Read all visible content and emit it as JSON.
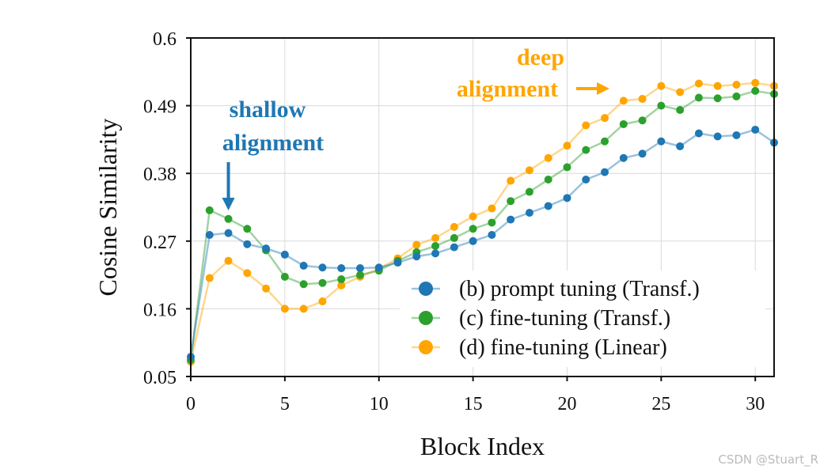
{
  "chart_data": {
    "type": "line",
    "xlabel": "Block Index",
    "ylabel": "Cosine Similarity",
    "xlim": [
      0,
      31
    ],
    "ylim": [
      0.05,
      0.6
    ],
    "xticks": [
      0,
      5,
      10,
      15,
      20,
      25,
      30
    ],
    "xtick_labels": [
      "0",
      "5",
      "10",
      "15",
      "20",
      "25",
      "30"
    ],
    "yticks": [
      0.05,
      0.16,
      0.27,
      0.38,
      0.49,
      0.6
    ],
    "ytick_labels": [
      "0.05",
      "0.16",
      "0.27",
      "0.38",
      "0.49",
      "0.6"
    ],
    "grid": true,
    "legend_position": "bottom-right",
    "x": [
      0,
      1,
      2,
      3,
      4,
      5,
      6,
      7,
      8,
      9,
      10,
      11,
      12,
      13,
      14,
      15,
      16,
      17,
      18,
      19,
      20,
      21,
      22,
      23,
      24,
      25,
      26,
      27,
      28,
      29,
      30,
      31
    ],
    "series": [
      {
        "name": "(b) prompt tuning (Transf.)",
        "color": "#1f77b4",
        "values": [
          0.082,
          0.28,
          0.283,
          0.265,
          0.258,
          0.248,
          0.23,
          0.227,
          0.226,
          0.226,
          0.227,
          0.235,
          0.245,
          0.25,
          0.26,
          0.27,
          0.28,
          0.305,
          0.316,
          0.327,
          0.34,
          0.37,
          0.382,
          0.405,
          0.412,
          0.432,
          0.424,
          0.445,
          0.44,
          0.442,
          0.451,
          0.43
        ]
      },
      {
        "name": "(c) fine-tuning (Transf.)",
        "color": "#2ca02c",
        "values": [
          0.077,
          0.32,
          0.306,
          0.29,
          0.255,
          0.212,
          0.2,
          0.202,
          0.208,
          0.215,
          0.222,
          0.238,
          0.252,
          0.262,
          0.275,
          0.29,
          0.3,
          0.335,
          0.35,
          0.37,
          0.39,
          0.418,
          0.432,
          0.46,
          0.466,
          0.49,
          0.483,
          0.503,
          0.502,
          0.505,
          0.514,
          0.509
        ]
      },
      {
        "name": "(d) fine-tuning (Linear)",
        "color": "#ffa500",
        "values": [
          0.074,
          0.21,
          0.238,
          0.218,
          0.193,
          0.16,
          0.16,
          0.172,
          0.198,
          0.212,
          0.225,
          0.242,
          0.264,
          0.275,
          0.293,
          0.31,
          0.323,
          0.368,
          0.385,
          0.405,
          0.425,
          0.458,
          0.47,
          0.498,
          0.501,
          0.522,
          0.512,
          0.526,
          0.522,
          0.524,
          0.527,
          0.522
        ]
      }
    ],
    "annotations": [
      {
        "id": "shallow",
        "lines": [
          "shallow",
          "alignment"
        ],
        "color": "#1f77b4",
        "arrow_x": 2,
        "arrow": "down"
      },
      {
        "id": "deep",
        "lines": [
          "deep",
          "alignment"
        ],
        "color": "#ffa500",
        "arrow": "right"
      }
    ]
  },
  "watermark": "CSDN @Stuart_R"
}
